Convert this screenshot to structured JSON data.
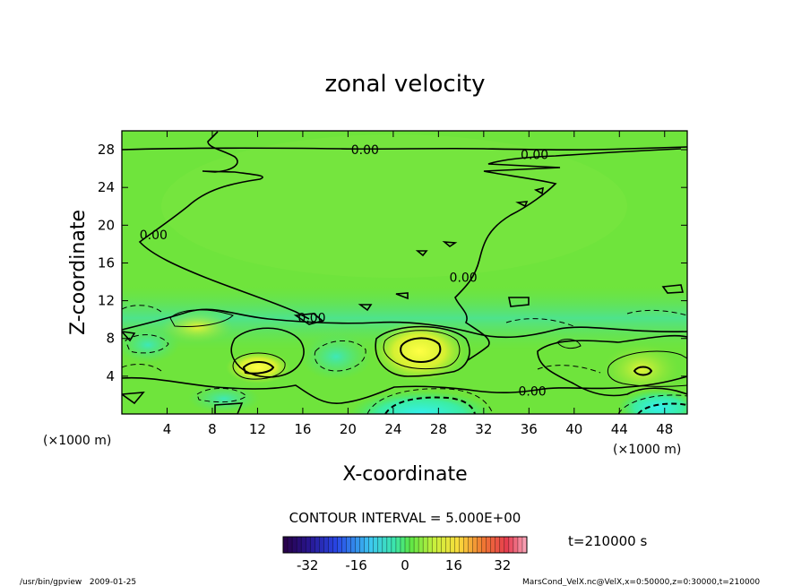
{
  "chart_data": {
    "type": "heatmap",
    "title": "zonal velocity",
    "xlabel": "X-coordinate",
    "ylabel": "Z-coordinate",
    "x_unit_left": "(×1000 m)",
    "x_unit_right": "(×1000 m)",
    "xlim": [
      0,
      50
    ],
    "ylim": [
      0,
      30
    ],
    "x_ticks": [
      4,
      8,
      12,
      16,
      20,
      24,
      28,
      32,
      36,
      40,
      44,
      48
    ],
    "y_ticks": [
      4,
      8,
      12,
      16,
      20,
      24,
      28
    ],
    "contour_interval_text": "CONTOUR INTERVAL = 5.000E+00",
    "time_text": "t=210000 s",
    "colorbar": {
      "range": [
        -40,
        40
      ],
      "ticks": [
        -32,
        -16,
        0,
        16,
        32
      ]
    },
    "contour_labels": [
      {
        "text": "0.00",
        "x": 21.5,
        "z": 28.0
      },
      {
        "text": "0.00",
        "x": 36.5,
        "z": 27.5
      },
      {
        "text": "0.00",
        "x": 2.8,
        "z": 19.0
      },
      {
        "text": "0.00",
        "x": 30.2,
        "z": 14.5
      },
      {
        "text": "0.00",
        "x": 16.8,
        "z": 10.2
      },
      {
        "text": "0.00",
        "x": 36.3,
        "z": 2.4
      }
    ],
    "features": [
      {
        "kind": "positive-max",
        "x": 26.3,
        "z": 6.5,
        "value": 18
      },
      {
        "kind": "positive-max",
        "x": 12.0,
        "z": 5.0,
        "value": 14
      },
      {
        "kind": "positive-max",
        "x": 45.5,
        "z": 4.5,
        "value": 12
      },
      {
        "kind": "negative-min",
        "x": 26.5,
        "z": 0.8,
        "value": -15
      },
      {
        "kind": "negative-min",
        "x": 19.0,
        "z": 6.5,
        "value": -8
      },
      {
        "kind": "negative-min",
        "x": 46.5,
        "z": 1.0,
        "value": -10
      }
    ]
  },
  "footer": {
    "left": "/usr/bin/gpview   2009-01-25",
    "right": "MarsCond_VelX.nc@VelX,x=0:50000,z=0:30000,t=210000"
  }
}
